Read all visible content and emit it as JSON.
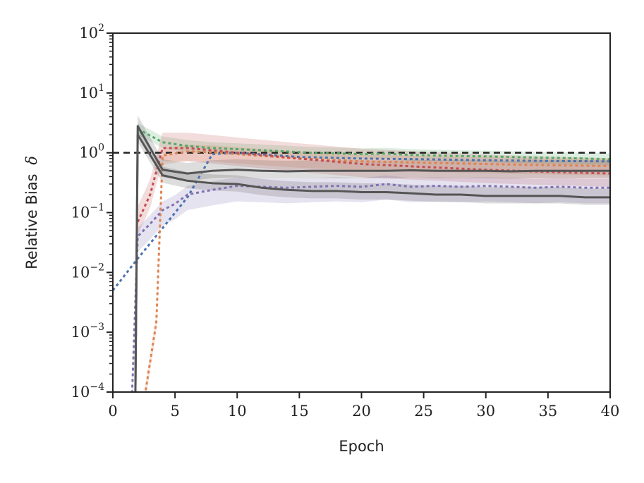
{
  "chart_data": {
    "type": "line",
    "title": "",
    "xlabel": "Epoch",
    "ylabel": "Relative Bias",
    "ylabel_symbol": "δ",
    "y_scale": "log",
    "xlim": [
      0,
      40
    ],
    "ylim": [
      0.0001,
      100
    ],
    "x_ticks": [
      "0",
      "5",
      "10",
      "15",
      "20",
      "25",
      "30",
      "35",
      "40"
    ],
    "y_ticks": [
      {
        "base": "10",
        "exp": "2"
      },
      {
        "base": "10",
        "exp": "1"
      },
      {
        "base": "10",
        "exp": "0"
      },
      {
        "base": "10",
        "exp": "−1"
      },
      {
        "base": "10",
        "exp": "−2"
      },
      {
        "base": "10",
        "exp": "−3"
      },
      {
        "base": "10",
        "exp": "−4"
      }
    ],
    "grid": false,
    "legend": null,
    "reference_line": {
      "y": 1,
      "color": "#222222",
      "style": "dashed"
    },
    "series": [
      {
        "color": "#4c72b0",
        "style": "dotted",
        "x": [
          0,
          2,
          4,
          6,
          8,
          10,
          15,
          20,
          25,
          30,
          35,
          40
        ],
        "y": [
          0.005,
          0.017,
          0.055,
          0.18,
          0.95,
          1.0,
          0.85,
          0.8,
          0.78,
          0.75,
          0.73,
          0.72
        ]
      },
      {
        "color": "#dd8452",
        "style": "dotted",
        "x": [
          2.5,
          3.5,
          4,
          6,
          8,
          10,
          15,
          20,
          25,
          30,
          35,
          40
        ],
        "y": [
          7e-05,
          0.0015,
          0.9,
          1.05,
          1.02,
          0.95,
          0.8,
          0.72,
          0.68,
          0.65,
          0.62,
          0.6
        ],
        "band": [
          0.7,
          1.3
        ]
      },
      {
        "color": "#55a868",
        "style": "dotted",
        "x": [
          2,
          4,
          6,
          8,
          10,
          12,
          14,
          16,
          18,
          20,
          22,
          24,
          26,
          28,
          30,
          32,
          34,
          36,
          38,
          40
        ],
        "y": [
          2.5,
          1.5,
          1.3,
          1.2,
          1.15,
          1.1,
          1.05,
          1.0,
          0.98,
          0.95,
          0.97,
          0.92,
          0.9,
          0.88,
          0.87,
          0.85,
          0.83,
          0.82,
          0.8,
          0.78
        ],
        "band": [
          0.8,
          1.25
        ]
      },
      {
        "color": "#c44e52",
        "style": "dotted",
        "x": [
          2,
          3,
          4,
          6,
          8,
          10,
          15,
          20,
          25,
          30,
          35,
          40
        ],
        "y": [
          0.07,
          0.2,
          1.2,
          1.2,
          1.1,
          1.0,
          0.8,
          0.65,
          0.58,
          0.52,
          0.48,
          0.45
        ],
        "band": [
          0.6,
          1.8
        ]
      },
      {
        "color": "#8172b3",
        "style": "dotted",
        "x": [
          1.5,
          2,
          3,
          4,
          5,
          6,
          8,
          10,
          12,
          14,
          16,
          18,
          20,
          22,
          24,
          26,
          28,
          30,
          32,
          34,
          36,
          38,
          40
        ],
        "y": [
          5e-05,
          0.04,
          0.065,
          0.11,
          0.14,
          0.2,
          0.24,
          0.28,
          0.27,
          0.26,
          0.27,
          0.28,
          0.27,
          0.3,
          0.27,
          0.28,
          0.27,
          0.28,
          0.27,
          0.26,
          0.27,
          0.26,
          0.26
        ],
        "band": [
          0.55,
          1.4
        ]
      },
      {
        "color": "#555555",
        "style": "solid",
        "width": 3,
        "x": [
          1.8,
          2,
          4,
          6,
          8,
          10,
          12,
          14,
          16,
          18,
          20,
          22,
          24,
          26,
          28,
          30,
          32,
          34,
          36,
          38,
          40
        ],
        "y": [
          5e-05,
          2.8,
          0.52,
          0.45,
          0.5,
          0.52,
          0.5,
          0.49,
          0.5,
          0.5,
          0.5,
          0.5,
          0.51,
          0.5,
          0.5,
          0.5,
          0.49,
          0.5,
          0.5,
          0.5,
          0.5
        ],
        "band": [
          0.75,
          1.5
        ]
      },
      {
        "color": "#555555",
        "style": "solid",
        "width": 3,
        "x": [
          1.8,
          2,
          4,
          6,
          8,
          10,
          12,
          14,
          16,
          18,
          20,
          22,
          24,
          26,
          28,
          30,
          32,
          34,
          36,
          38,
          40
        ],
        "y": [
          5e-05,
          2.0,
          0.42,
          0.34,
          0.31,
          0.3,
          0.26,
          0.24,
          0.23,
          0.23,
          0.22,
          0.22,
          0.21,
          0.2,
          0.2,
          0.19,
          0.19,
          0.19,
          0.19,
          0.18,
          0.18
        ],
        "band": [
          0.75,
          1.4
        ]
      }
    ]
  }
}
